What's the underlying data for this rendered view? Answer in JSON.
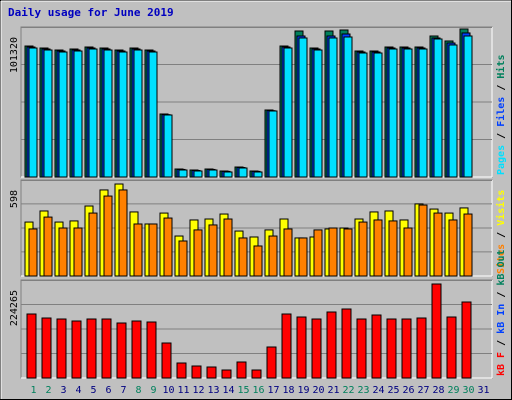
{
  "title": "Daily usage for June 2019",
  "categories": [
    "1",
    "2",
    "3",
    "4",
    "5",
    "6",
    "7",
    "8",
    "9",
    "10",
    "11",
    "12",
    "13",
    "14",
    "15",
    "16",
    "17",
    "18",
    "19",
    "20",
    "21",
    "22",
    "23",
    "24",
    "25",
    "26",
    "27",
    "28",
    "29",
    "30",
    "31"
  ],
  "weekday_color": "#000080",
  "weekend_color": "#00805c",
  "weekend_days": [
    1,
    2,
    8,
    9,
    15,
    16,
    22,
    23,
    29,
    30
  ],
  "chart_data": [
    {
      "type": "bar",
      "ylim": [
        0,
        101320
      ],
      "yticks": [
        101320
      ],
      "grid": [
        25330,
        50660,
        75990
      ],
      "separator": "/",
      "series": [
        {
          "name": "Hits",
          "color": "#00805c",
          "values": [
            88480,
            87130,
            85780,
            86460,
            87810,
            87130,
            85780,
            87130,
            85780,
            42560,
            5400,
            4730,
            5400,
            4050,
            6750,
            4050,
            45260,
            88480,
            98620,
            87130,
            98620,
            99300,
            85110,
            85110,
            87810,
            87810,
            87810,
            95240,
            91870,
            99970,
            null
          ]
        },
        {
          "name": "Files",
          "color": "#0040ff",
          "values": [
            87800,
            86450,
            85100,
            85780,
            87130,
            86450,
            85100,
            86450,
            85100,
            42100,
            5100,
            4400,
            5100,
            3800,
            6400,
            3800,
            44800,
            87800,
            95240,
            86450,
            95240,
            96600,
            84430,
            84430,
            87130,
            87130,
            87130,
            93900,
            90500,
            97300,
            null
          ]
        },
        {
          "name": "Pages",
          "color": "#00e0ff",
          "values": [
            87130,
            85780,
            84430,
            85100,
            86460,
            85780,
            84430,
            85780,
            84430,
            41880,
            4730,
            4050,
            4730,
            3380,
            6080,
            3380,
            44580,
            87130,
            93900,
            85780,
            93900,
            94570,
            83750,
            83750,
            86460,
            86460,
            86460,
            93220,
            89170,
            95240,
            null
          ]
        }
      ]
    },
    {
      "type": "bar",
      "ylim": [
        0,
        598
      ],
      "yticks": [
        598
      ],
      "grid": [
        150,
        299,
        449
      ],
      "separator": "/",
      "series": [
        {
          "name": "Visits",
          "color": "#ffff00",
          "values": [
            336,
            405,
            336,
            343,
            436,
            536,
            573,
            399,
            324,
            392,
            249,
            349,
            355,
            386,
            280,
            243,
            287,
            355,
            237,
            243,
            293,
            299,
            355,
            399,
            405,
            349,
            449,
            417,
            392,
            424,
            null
          ]
        },
        {
          "name": "Sites",
          "color": "#ff8000",
          "values": [
            293,
            367,
            299,
            299,
            392,
            498,
            536,
            324,
            324,
            361,
            218,
            287,
            318,
            355,
            237,
            187,
            249,
            293,
            237,
            287,
            299,
            293,
            336,
            349,
            343,
            299,
            442,
            392,
            349,
            386,
            null
          ]
        }
      ]
    },
    {
      "type": "bar",
      "ylim": [
        0,
        224265
      ],
      "yticks": [
        224265
      ],
      "grid": [
        56066,
        112133,
        168199
      ],
      "separator": "/",
      "series": [
        {
          "name": "kB F",
          "color": "#ff0000",
          "values": [
            146460,
            137300,
            135020,
            130440,
            135020,
            135020,
            125860,
            130440,
            128150,
            80090,
            34330,
            27460,
            25170,
            18310,
            36610,
            18310,
            70940,
            146460,
            139590,
            135020,
            151030,
            157900,
            135020,
            144170,
            135020,
            135020,
            137300,
            215110,
            139590,
            173920,
            null
          ]
        }
      ],
      "extra_legend": [
        {
          "name": "kB In",
          "color": "#0040ff"
        },
        {
          "name": "kB Out",
          "color": "#00805c"
        }
      ]
    }
  ]
}
